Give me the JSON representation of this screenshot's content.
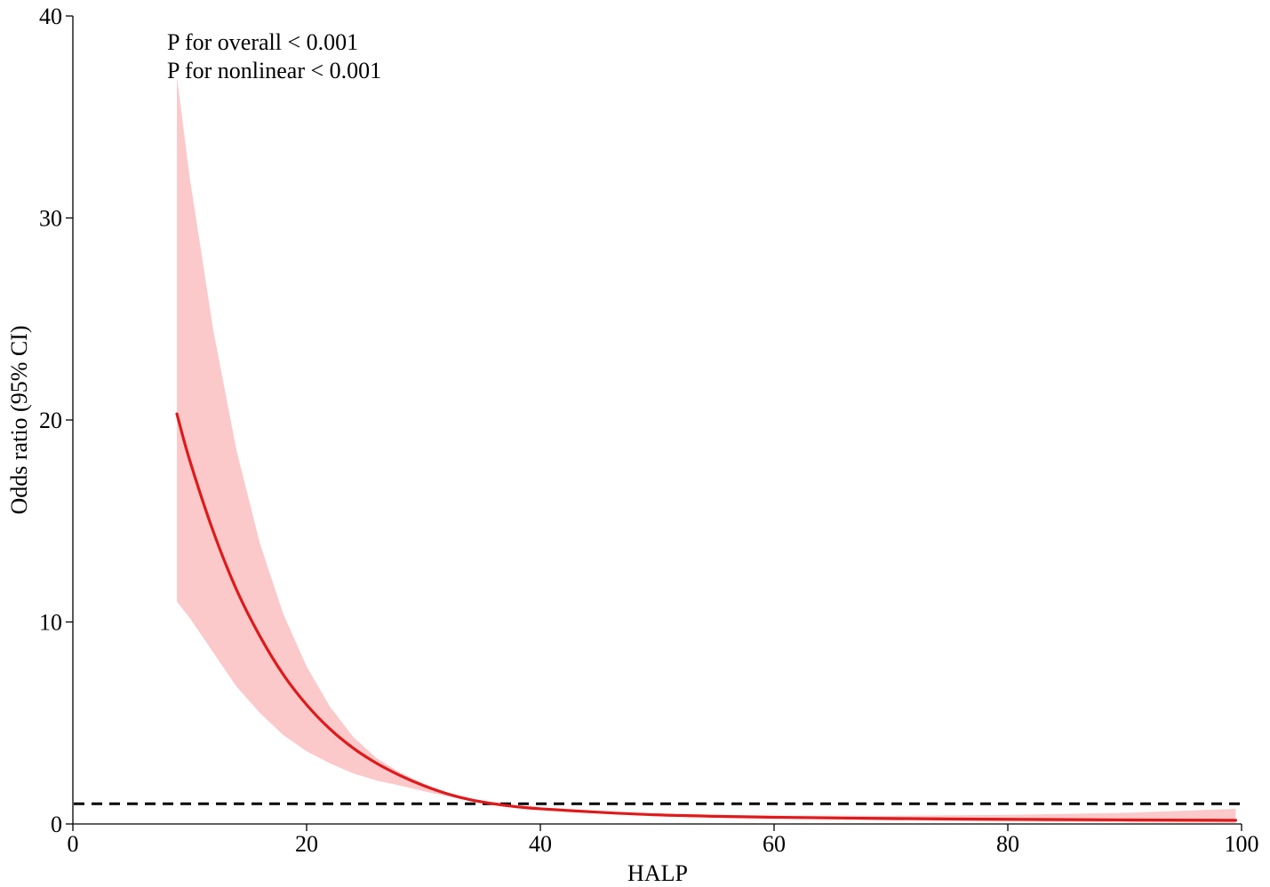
{
  "chart_data": {
    "type": "line",
    "xlabel": "HALP",
    "ylabel": "Odds ratio (95% CI)",
    "xlim": [
      0,
      100
    ],
    "ylim": [
      0,
      40
    ],
    "x_ticks": [
      "0",
      "20",
      "40",
      "60",
      "80",
      "100"
    ],
    "y_ticks": [
      "0",
      "10",
      "20",
      "30",
      "40"
    ],
    "annotations": [
      "P for overall < 0.001",
      "P for nonlinear < 0.001"
    ],
    "reference_line": {
      "y": 1,
      "style": "dashed",
      "color": "#000000"
    },
    "series": [
      {
        "kind": "curve",
        "color": "#e0191b",
        "x": [
          8.9,
          10,
          12,
          14,
          16,
          18,
          20,
          22,
          24,
          26,
          28,
          30,
          32,
          34,
          36,
          38,
          40,
          45,
          50,
          55,
          60,
          70,
          80,
          90,
          99.5
        ],
        "y": [
          20.3,
          18.0,
          14.5,
          11.6,
          9.3,
          7.4,
          5.9,
          4.7,
          3.75,
          3.0,
          2.4,
          1.9,
          1.5,
          1.2,
          1.0,
          0.85,
          0.75,
          0.58,
          0.45,
          0.38,
          0.33,
          0.27,
          0.23,
          0.2,
          0.18
        ]
      },
      {
        "kind": "ci_band",
        "color": "#fbc9ca",
        "x": [
          8.9,
          10,
          12,
          14,
          16,
          18,
          20,
          22,
          24,
          26,
          28,
          30,
          32,
          34,
          36,
          38,
          40,
          45,
          50,
          55,
          60,
          70,
          80,
          90,
          99.5
        ],
        "upper": [
          37.0,
          32.0,
          24.5,
          18.5,
          13.9,
          10.4,
          7.8,
          5.8,
          4.3,
          3.25,
          2.55,
          2.0,
          1.55,
          1.22,
          1.0,
          0.87,
          0.78,
          0.62,
          0.5,
          0.45,
          0.42,
          0.4,
          0.45,
          0.55,
          0.75
        ],
        "lower": [
          11.0,
          10.2,
          8.5,
          6.8,
          5.5,
          4.4,
          3.6,
          3.0,
          2.5,
          2.15,
          1.9,
          1.62,
          1.38,
          1.15,
          0.98,
          0.82,
          0.71,
          0.55,
          0.41,
          0.33,
          0.27,
          0.18,
          0.12,
          0.08,
          0.05
        ]
      }
    ]
  }
}
